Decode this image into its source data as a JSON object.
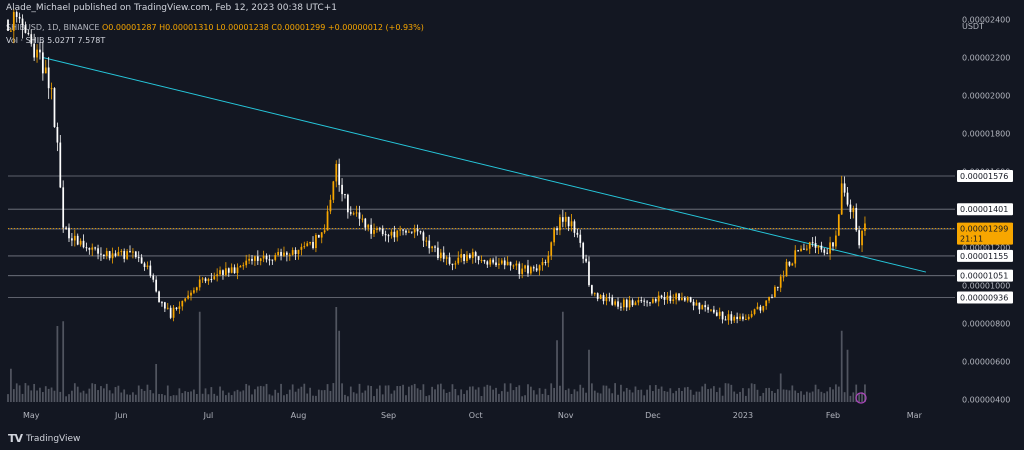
{
  "header": {
    "publisher": "Alade_Michael published on TradingView.com, Feb 12, 2023 00:38 UTC+1"
  },
  "ohlc": {
    "symbol": "SHIBUSD, 1D, BINANCE",
    "o": "O0.00001287",
    "h": "H0.00001310",
    "l": "L0.00001238",
    "c": "C0.00001299",
    "chg": "+0.00000012 (+0.93%)"
  },
  "volume_legend": {
    "label": "Vol · SHIB",
    "v1": "5.027T",
    "v2": "7.578T"
  },
  "footer": {
    "logo": "TV",
    "brand": "TradingView"
  },
  "colors": {
    "background": "#131722",
    "up": "#f7a600",
    "down": "#ffffff",
    "trendline": "#26c6da",
    "hline": "#787b86",
    "price_tag": "#f7a600"
  },
  "chart_data": {
    "type": "candlestick",
    "currency_label": "USDT",
    "y_ticks": [
      "0.00002400",
      "0.00002200",
      "0.00002000",
      "0.00001800",
      "0.00001600",
      "0.00001400",
      "0.00001200",
      "0.00001000",
      "0.00000800",
      "0.00000600",
      "0.00000400"
    ],
    "x_ticks": [
      "May",
      "Jun",
      "Jul",
      "Aug",
      "Sep",
      "Oct",
      "Nov",
      "Dec",
      "2023",
      "Feb",
      "Mar"
    ],
    "x_range": [
      "2022-04-23",
      "2023-03-15"
    ],
    "y_range": [
      3.7e-06,
      2.45e-05
    ],
    "horizontal_levels": [
      {
        "label": "0.00001576",
        "value": 1.576e-05
      },
      {
        "label": "0.00001401",
        "value": 1.401e-05
      },
      {
        "label": "0.00001297",
        "value": 1.297e-05
      },
      {
        "label": "0.00001155",
        "value": 1.155e-05
      },
      {
        "label": "0.00001051",
        "value": 1.051e-05
      },
      {
        "label": "0.00000936",
        "value": 9.36e-06
      }
    ],
    "current_price": {
      "label": "0.00001299",
      "countdown": "21:11",
      "value": 1.299e-05
    },
    "trendline": [
      {
        "date": "2022-05-05",
        "value": 2.2e-05
      },
      {
        "date": "2023-03-05",
        "value": 1.07e-05
      }
    ],
    "price_path": [
      [
        "2022-04-23",
        2.4e-05
      ],
      [
        "2022-04-28",
        2.35e-05
      ],
      [
        "2022-05-02",
        2.25e-05
      ],
      [
        "2022-05-05",
        2.15e-05
      ],
      [
        "2022-05-08",
        2e-05
      ],
      [
        "2022-05-10",
        1.75e-05
      ],
      [
        "2022-05-12",
        1.3e-05
      ],
      [
        "2022-05-15",
        1.25e-05
      ],
      [
        "2022-05-20",
        1.2e-05
      ],
      [
        "2022-05-28",
        1.15e-05
      ],
      [
        "2022-06-05",
        1.18e-05
      ],
      [
        "2022-06-10",
        1.1e-05
      ],
      [
        "2022-06-14",
        9.2e-06
      ],
      [
        "2022-06-18",
        8.5e-06
      ],
      [
        "2022-06-22",
        9e-06
      ],
      [
        "2022-06-28",
        1.03e-05
      ],
      [
        "2022-07-05",
        1.07e-05
      ],
      [
        "2022-07-12",
        1.1e-05
      ],
      [
        "2022-07-20",
        1.14e-05
      ],
      [
        "2022-07-28",
        1.18e-05
      ],
      [
        "2022-08-05",
        1.2e-05
      ],
      [
        "2022-08-10",
        1.3e-05
      ],
      [
        "2022-08-14",
        1.6e-05
      ],
      [
        "2022-08-18",
        1.4e-05
      ],
      [
        "2022-08-25",
        1.3e-05
      ],
      [
        "2022-09-01",
        1.25e-05
      ],
      [
        "2022-09-10",
        1.28e-05
      ],
      [
        "2022-09-17",
        1.18e-05
      ],
      [
        "2022-09-22",
        1.13e-05
      ],
      [
        "2022-10-01",
        1.15e-05
      ],
      [
        "2022-10-10",
        1.12e-05
      ],
      [
        "2022-10-17",
        1.08e-05
      ],
      [
        "2022-10-25",
        1.1e-05
      ],
      [
        "2022-10-28",
        1.28e-05
      ],
      [
        "2022-10-31",
        1.35e-05
      ],
      [
        "2022-11-05",
        1.28e-05
      ],
      [
        "2022-11-08",
        1.1e-05
      ],
      [
        "2022-11-10",
        9.5e-06
      ],
      [
        "2022-11-15",
        9.2e-06
      ],
      [
        "2022-11-22",
        9e-06
      ],
      [
        "2022-12-01",
        9.3e-06
      ],
      [
        "2022-12-08",
        9.4e-06
      ],
      [
        "2022-12-15",
        9.1e-06
      ],
      [
        "2022-12-20",
        8.6e-06
      ],
      [
        "2022-12-28",
        8.3e-06
      ],
      [
        "2023-01-03",
        8.4e-06
      ],
      [
        "2023-01-08",
        8.9e-06
      ],
      [
        "2023-01-12",
        9.8e-06
      ],
      [
        "2023-01-16",
        1.1e-05
      ],
      [
        "2023-01-20",
        1.18e-05
      ],
      [
        "2023-01-25",
        1.21e-05
      ],
      [
        "2023-01-30",
        1.17e-05
      ],
      [
        "2023-02-02",
        1.25e-05
      ],
      [
        "2023-02-04",
        1.5e-05
      ],
      [
        "2023-02-06",
        1.46e-05
      ],
      [
        "2023-02-08",
        1.38e-05
      ],
      [
        "2023-02-10",
        1.22e-05
      ],
      [
        "2023-02-12",
        1.3e-05
      ]
    ],
    "volume_spikes": [
      {
        "date": "2022-04-24",
        "value": 0.35
      },
      {
        "date": "2022-05-10",
        "value": 0.8
      },
      {
        "date": "2022-05-12",
        "value": 0.85
      },
      {
        "date": "2022-06-13",
        "value": 0.4
      },
      {
        "date": "2022-06-28",
        "value": 0.95
      },
      {
        "date": "2022-08-14",
        "value": 1.0
      },
      {
        "date": "2022-08-15",
        "value": 0.75
      },
      {
        "date": "2022-10-29",
        "value": 0.65
      },
      {
        "date": "2022-10-31",
        "value": 0.95
      },
      {
        "date": "2022-11-09",
        "value": 0.55
      },
      {
        "date": "2023-01-14",
        "value": 0.3
      },
      {
        "date": "2023-02-04",
        "value": 0.75
      },
      {
        "date": "2023-02-06",
        "value": 0.55
      }
    ]
  }
}
